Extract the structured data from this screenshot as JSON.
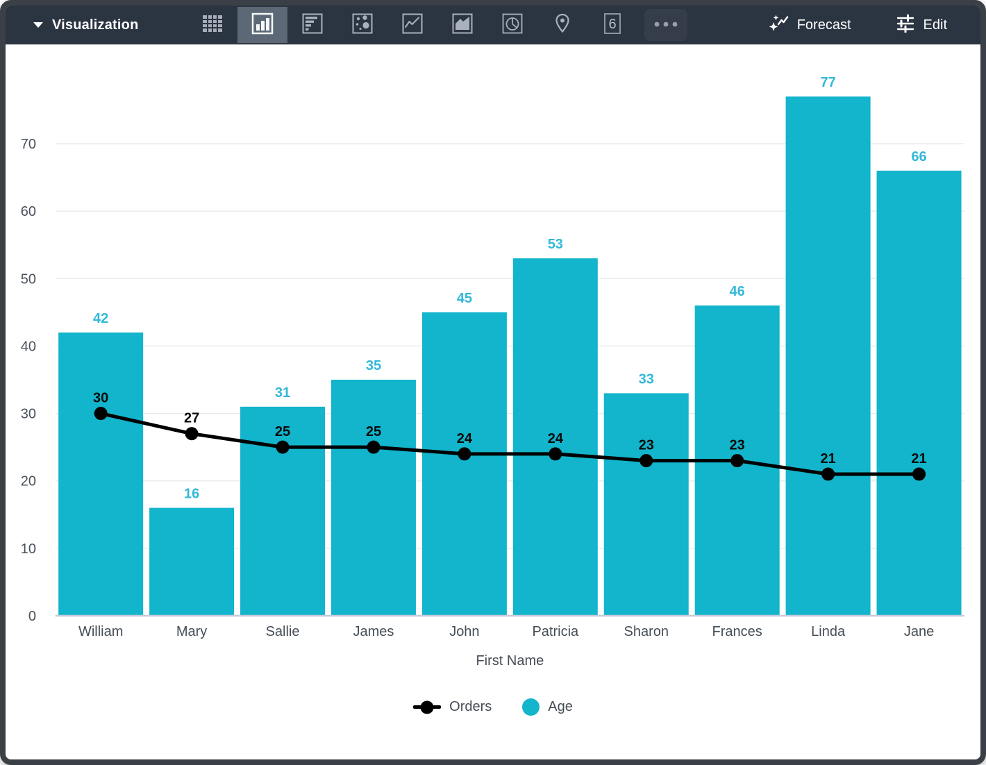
{
  "toolbar": {
    "title": "Visualization",
    "forecast_label": "Forecast",
    "edit_label": "Edit",
    "single_value_glyph": "6",
    "viz_types": [
      {
        "name": "table",
        "selected": false
      },
      {
        "name": "column",
        "selected": true
      },
      {
        "name": "bar",
        "selected": false
      },
      {
        "name": "scatter",
        "selected": false
      },
      {
        "name": "line",
        "selected": false
      },
      {
        "name": "area",
        "selected": false
      },
      {
        "name": "pie",
        "selected": false
      },
      {
        "name": "map",
        "selected": false
      },
      {
        "name": "single-value",
        "selected": false
      },
      {
        "name": "more",
        "selected": false
      }
    ]
  },
  "colors": {
    "bar": "#12b5cb",
    "bar_label": "#33b8d8",
    "line": "#000000",
    "line_label": "#0a0a0a",
    "toolbar_bg": "#2b3441",
    "selected_tile_bg": "#5d6876",
    "grid": "#ebebeb",
    "baseline": "#c7cbdb",
    "axis_text": "#454d55"
  },
  "chart_data": {
    "type": "combo-bar-line",
    "categories": [
      "William",
      "Mary",
      "Sallie",
      "James",
      "John",
      "Patricia",
      "Sharon",
      "Frances",
      "Linda",
      "Jane"
    ],
    "series": [
      {
        "name": "Age",
        "type": "bar",
        "color": "#12b5cb",
        "values": [
          42,
          16,
          31,
          35,
          45,
          53,
          33,
          46,
          77,
          66
        ]
      },
      {
        "name": "Orders",
        "type": "line",
        "color": "#000000",
        "values": [
          30,
          27,
          25,
          25,
          24,
          24,
          23,
          23,
          21,
          21
        ]
      }
    ],
    "xlabel": "First Name",
    "ylabel": "",
    "y_ticks": [
      0,
      10,
      20,
      30,
      40,
      50,
      60,
      70
    ],
    "ylim": [
      0,
      84
    ],
    "grid": true,
    "data_labels": true,
    "legend_position": "bottom",
    "legend": [
      {
        "label": "Orders",
        "marker": "line-dot",
        "color": "#000000"
      },
      {
        "label": "Age",
        "marker": "circle",
        "color": "#12b5cb"
      }
    ]
  }
}
